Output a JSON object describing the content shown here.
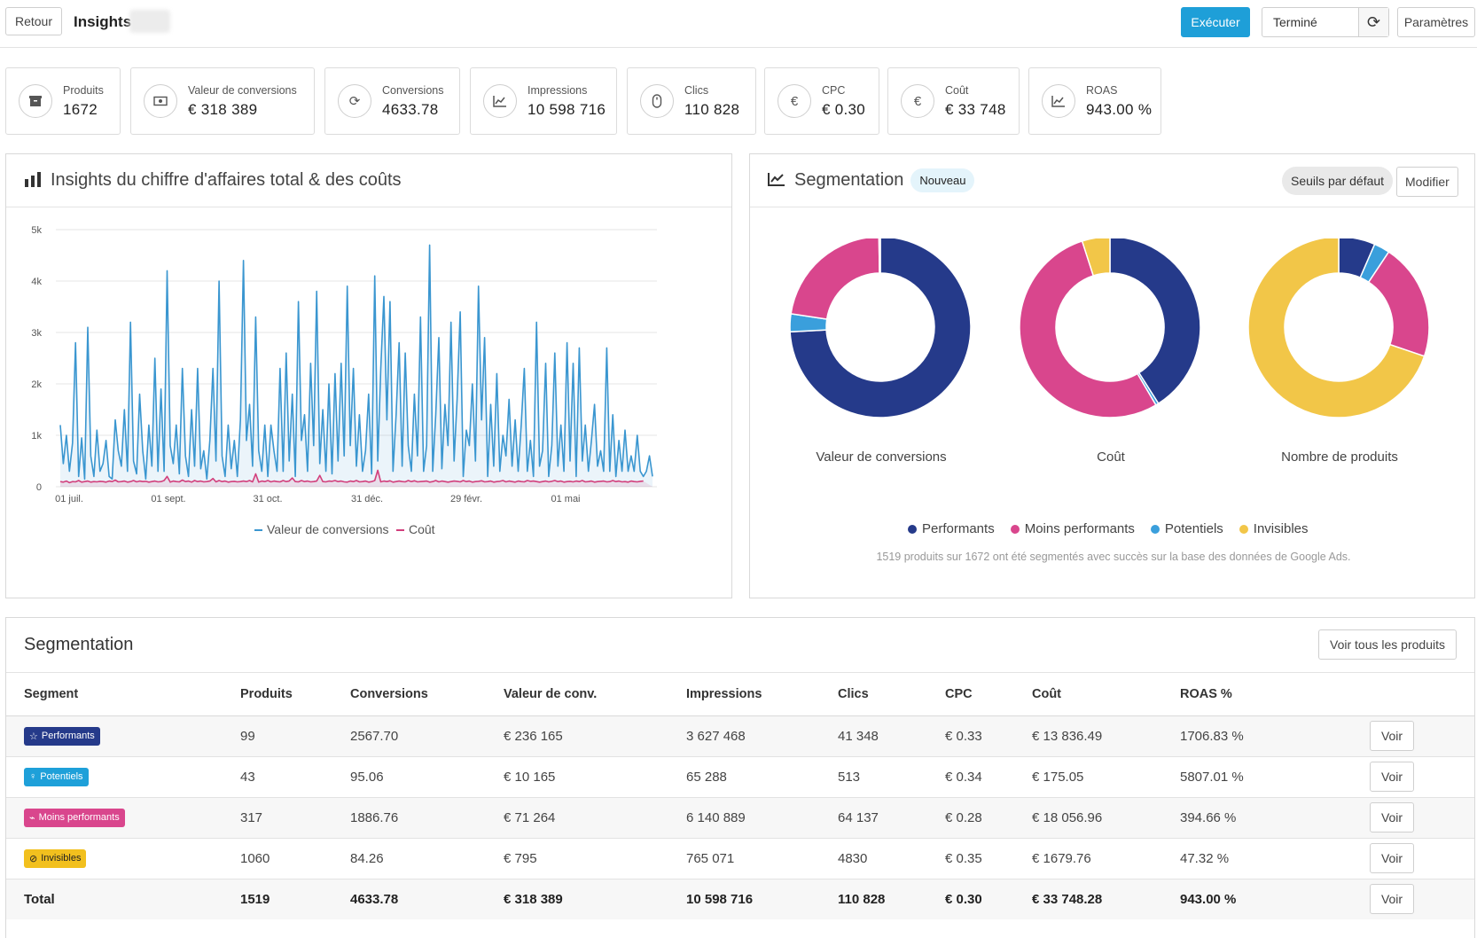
{
  "header": {
    "back_label": "Retour",
    "title": "Insights",
    "run_label": "Exécuter",
    "status": "Terminé",
    "settings_label": "Paramètres"
  },
  "kpis": [
    {
      "label": "Produits",
      "value": "1672",
      "icon": "box-icon"
    },
    {
      "label": "Valeur de conversions",
      "value": "€ 318 389",
      "icon": "money-icon"
    },
    {
      "label": "Conversions",
      "value": "4633.78",
      "icon": "refresh-icon"
    },
    {
      "label": "Impressions",
      "value": "10 598 716",
      "icon": "trend-icon"
    },
    {
      "label": "Clics",
      "value": "110 828",
      "icon": "mouse-icon"
    },
    {
      "label": "CPC",
      "value": "€ 0.30",
      "icon": "euro-icon"
    },
    {
      "label": "Coût",
      "value": "€ 33 748",
      "icon": "euro-icon"
    },
    {
      "label": "ROAS",
      "value": "943.00 %",
      "icon": "trend-icon"
    }
  ],
  "revenue_panel": {
    "title": "Insights du chiffre d'affaires total & des coûts"
  },
  "segmentation_panel": {
    "title": "Segmentation",
    "badge": "Nouveau",
    "thresholds_label": "Seuils par défaut",
    "modify_label": "Modifier",
    "donut_labels": [
      "Valeur de conversions",
      "Coût",
      "Nombre de produits"
    ],
    "legend": [
      "Performants",
      "Moins performants",
      "Potentiels",
      "Invisibles"
    ],
    "note": "1519 produits sur 1672 ont été segmentés avec succès sur la base des données de Google Ads."
  },
  "colors": {
    "performants": "#253a8a",
    "moins_performants": "#d9468d",
    "potentiels": "#3a9fdc",
    "invisibles": "#f2c648",
    "conv_line": "#3a96d0",
    "cost_line": "#d23f7c"
  },
  "chart_data": [
    {
      "type": "line",
      "xlabel": "",
      "ylabel": "",
      "ylim": [
        0,
        5000
      ],
      "y_ticks": [
        "0",
        "1k",
        "2k",
        "3k",
        "4k",
        "5k"
      ],
      "x_ticks": [
        "01 juil.",
        "01 sept.",
        "31 oct.",
        "31 déc.",
        "29 févr.",
        "01 mai"
      ],
      "legend": "bottom",
      "grid": true,
      "series": [
        {
          "name": "Valeur de conversions",
          "values": [
            1200,
            450,
            1000,
            300,
            850,
            2800,
            200,
            950,
            150,
            3100,
            600,
            200,
            1100,
            300,
            450,
            900,
            200,
            150,
            1300,
            700,
            400,
            1500,
            300,
            3200,
            500,
            250,
            1800,
            700,
            150,
            1200,
            400,
            2500,
            300,
            1900,
            300,
            4200,
            800,
            450,
            1200,
            250,
            2300,
            600,
            200,
            1500,
            400,
            2300,
            350,
            700,
            150,
            900,
            2300,
            500,
            4000,
            600,
            200,
            1200,
            350,
            900,
            200,
            1300,
            4400,
            900,
            1600,
            400,
            3300,
            700,
            300,
            1200,
            200,
            1200,
            700,
            300,
            2300,
            300,
            2600,
            500,
            1800,
            200,
            3600,
            900,
            1400,
            300,
            2400,
            800,
            3800,
            450,
            1500,
            300,
            2000,
            250,
            2200,
            500,
            2400,
            600,
            3900,
            800,
            2300,
            400,
            1400,
            300,
            700,
            1800,
            250,
            4100,
            500,
            2300,
            3700,
            1300,
            3600,
            300,
            1400,
            2800,
            400,
            2600,
            800,
            300,
            1800,
            600,
            3300,
            300,
            800,
            4700,
            300,
            1400,
            2900,
            350,
            1600,
            800,
            3200,
            500,
            1700,
            3400,
            200,
            1100,
            800,
            2000,
            500,
            3900,
            1300,
            2900,
            200,
            1600,
            400,
            2200,
            300,
            1000,
            600,
            1700,
            400,
            1300,
            300,
            1200,
            2300,
            300,
            900,
            200,
            3200,
            400,
            700,
            2400,
            200,
            800,
            2600,
            400,
            1200,
            300,
            2800,
            500,
            2400,
            200,
            2700,
            500,
            1200,
            300,
            900,
            1600,
            400,
            700,
            300,
            2700,
            300,
            1400,
            200,
            900,
            300,
            1100,
            300,
            600,
            300,
            1000,
            300,
            200,
            300,
            600,
            200
          ]
        },
        {
          "name": "Coût",
          "values": [
            100,
            90,
            110,
            80,
            100,
            95,
            120,
            90,
            100,
            110,
            90,
            100,
            95,
            105,
            100,
            90,
            110,
            100,
            130,
            95,
            100,
            110,
            90,
            100,
            120,
            95,
            110,
            100,
            105,
            90,
            100,
            110,
            95,
            100,
            120,
            200,
            90,
            110,
            100,
            95,
            130,
            100,
            110,
            90,
            120,
            100,
            110,
            95,
            100,
            110,
            160,
            95,
            120,
            100,
            110,
            90,
            100,
            105,
            95,
            100,
            110,
            100,
            120,
            95,
            250,
            90,
            110,
            100,
            120,
            95,
            110,
            100,
            95,
            120,
            100,
            110,
            170,
            100,
            95,
            120,
            100,
            110,
            95,
            100,
            110,
            220,
            100,
            95,
            110,
            105,
            120,
            100,
            110,
            95,
            90,
            110,
            100,
            120,
            95,
            100,
            110,
            90,
            100,
            120,
            320,
            95,
            110,
            100,
            115,
            90,
            100,
            110,
            100,
            95,
            120,
            100,
            115,
            95,
            100,
            105,
            110,
            90,
            100,
            120,
            95,
            110,
            100,
            90,
            100,
            110,
            105,
            95,
            120,
            100,
            110,
            90,
            100,
            105,
            115,
            95,
            100,
            110,
            90,
            100,
            105,
            120,
            95,
            110,
            100,
            90,
            110,
            100,
            95,
            120,
            105,
            110,
            100,
            90,
            100,
            110,
            95,
            105,
            120,
            100,
            110,
            90,
            100,
            105,
            95,
            110,
            100,
            120,
            95,
            100,
            110,
            90,
            100,
            105,
            110,
            95,
            100,
            120,
            100,
            110,
            95,
            100,
            90,
            110,
            100,
            95,
            105,
            110
          ]
        }
      ]
    },
    {
      "type": "pie",
      "title": "Valeur de conversions",
      "categories": [
        "Performants",
        "Potentiels",
        "Moins performants",
        "Invisibles"
      ],
      "values": [
        236165,
        10165,
        71264,
        795
      ]
    },
    {
      "type": "pie",
      "title": "Coût",
      "categories": [
        "Performants",
        "Potentiels",
        "Moins performants",
        "Invisibles"
      ],
      "values": [
        13836.49,
        175.05,
        18056.96,
        1679.76
      ]
    },
    {
      "type": "pie",
      "title": "Nombre de produits",
      "categories": [
        "Performants",
        "Potentiels",
        "Moins performants",
        "Invisibles"
      ],
      "values": [
        99,
        43,
        317,
        1060
      ]
    }
  ],
  "table": {
    "title": "Segmentation",
    "all_products_label": "Voir tous les produits",
    "columns": [
      "Segment",
      "Produits",
      "Conversions",
      "Valeur de conv.",
      "Impressions",
      "Clics",
      "CPC",
      "Coût",
      "ROAS %"
    ],
    "see_label": "Voir",
    "rows": [
      {
        "segment": "Performants",
        "icon": "star-icon",
        "badge_color": "#253a8a",
        "text_color": "#ffffff",
        "produits": "99",
        "conversions": "2567.70",
        "valeur": "€ 236 165",
        "impressions": "3 627 468",
        "clics": "41 348",
        "cpc": "€ 0.33",
        "cout": "€ 13 836.49",
        "roas": "1706.83 %"
      },
      {
        "segment": "Potentiels",
        "icon": "bulb-icon",
        "badge_color": "#1ea0d9",
        "text_color": "#ffffff",
        "produits": "43",
        "conversions": "95.06",
        "valeur": "€ 10 165",
        "impressions": "65 288",
        "clics": "513",
        "cpc": "€ 0.34",
        "cout": "€ 175.05",
        "roas": "5807.01 %"
      },
      {
        "segment": "Moins performants",
        "icon": "chart-down-icon",
        "badge_color": "#d9468d",
        "text_color": "#ffffff",
        "produits": "317",
        "conversions": "1886.76",
        "valeur": "€ 71 264",
        "impressions": "6 140 889",
        "clics": "64 137",
        "cpc": "€ 0.28",
        "cout": "€ 18 056.96",
        "roas": "394.66 %"
      },
      {
        "segment": "Invisibles",
        "icon": "eye-slash-icon",
        "badge_color": "#f2c01e",
        "text_color": "#222222",
        "produits": "1060",
        "conversions": "84.26",
        "valeur": "€ 795",
        "impressions": "765 071",
        "clics": "4830",
        "cpc": "€ 0.35",
        "cout": "€ 1679.76",
        "roas": "47.32 %"
      }
    ],
    "total": {
      "segment": "Total",
      "produits": "1519",
      "conversions": "4633.78",
      "valeur": "€ 318 389",
      "impressions": "10 598 716",
      "clics": "110 828",
      "cpc": "€ 0.30",
      "cout": "€ 33 748.28",
      "roas": "943.00 %"
    }
  }
}
